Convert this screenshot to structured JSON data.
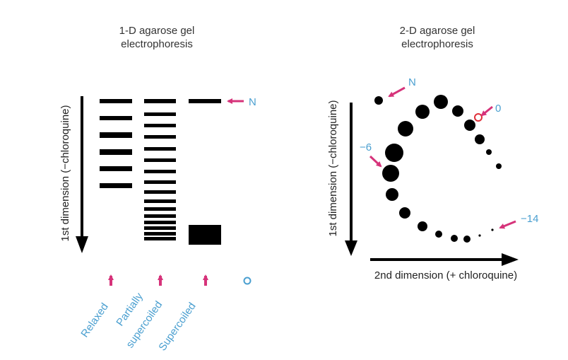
{
  "panel_1d": {
    "title_line1": "1-D agarose gel",
    "title_line2": "electrophoresis",
    "y_axis_label": "1st dimension (−chloroquine)",
    "lane_labels": [
      "Relaxed",
      "Partially",
      "supercoiled",
      "Supercoiled"
    ],
    "n_label": "N"
  },
  "panel_2d": {
    "title_line1": "2-D agarose gel",
    "title_line2": "electrophoresis",
    "y_axis_label": "1st dimension (−chloroquine)",
    "x_axis_label": "2nd dimension (+ chloroquine)",
    "n_label": "N",
    "marker_zero": "0",
    "marker_minus6": "−6",
    "marker_minus14": "−14"
  },
  "colors": {
    "band": "#000000",
    "arrow_magenta": "#d6337a",
    "label_blue": "#4a9fd0",
    "highlight_red": "#e0303a"
  }
}
